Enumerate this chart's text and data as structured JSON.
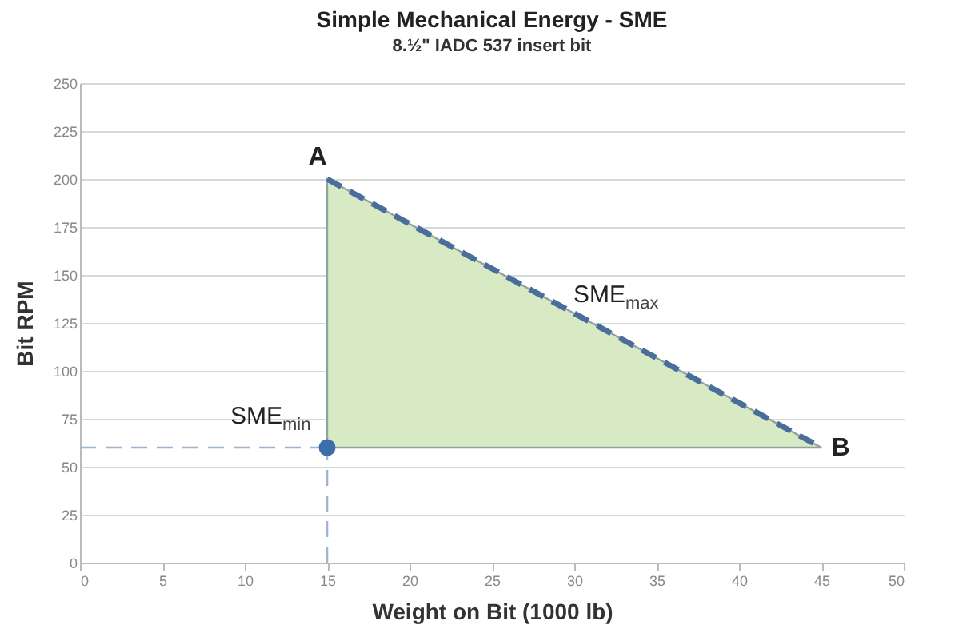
{
  "chart_data": {
    "type": "line",
    "title": "Simple Mechanical Energy - SME",
    "subtitle": "8.½\" IADC 537 insert bit",
    "xlabel": "Weight on Bit (1000 lb)",
    "ylabel": "Bit RPM",
    "xlim": [
      0,
      50
    ],
    "xticks": [
      0,
      5,
      10,
      15,
      20,
      25,
      30,
      35,
      40,
      45,
      50
    ],
    "ylim": [
      0,
      250
    ],
    "yticks": [
      0,
      25,
      50,
      75,
      100,
      125,
      150,
      175,
      200,
      225,
      250
    ],
    "grid": "y",
    "series": [
      {
        "color": "#9fb4cf",
        "line_style": "dashed",
        "x": [
          0,
          15
        ],
        "values": [
          60,
          60
        ]
      },
      {
        "color": "#9fb4cf",
        "line_style": "dashed",
        "x": [
          15,
          15
        ],
        "values": [
          0,
          60
        ]
      },
      {
        "color": "#4a6e9c",
        "line_style": "dashed",
        "x": [
          15,
          45
        ],
        "values": [
          200,
          60
        ],
        "lower": [
          60,
          60
        ],
        "upper": [
          200,
          60
        ]
      },
      {
        "type": "scatter",
        "color": "#3e6eaa",
        "marker": "circle",
        "x": [
          15
        ],
        "values": [
          60
        ]
      }
    ],
    "annotations": [
      {
        "text": "A",
        "x": 15,
        "y": 200
      },
      {
        "text": "B",
        "x": 45,
        "y": 60
      },
      {
        "text": "SME$_{min}$",
        "x": 15,
        "y": 60
      },
      {
        "text": "SME$_{max}$",
        "x": 30,
        "y": 130
      }
    ]
  }
}
